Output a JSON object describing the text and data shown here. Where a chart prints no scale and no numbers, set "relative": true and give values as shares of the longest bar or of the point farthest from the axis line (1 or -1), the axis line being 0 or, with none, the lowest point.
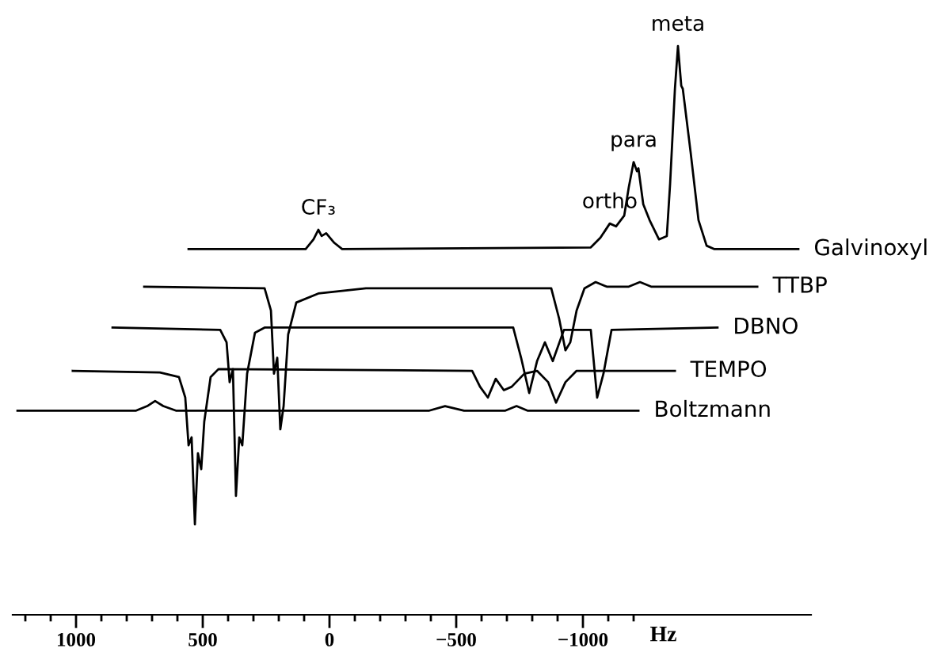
{
  "chart_data": {
    "type": "line",
    "relative": true,
    "xlabel": "Hz",
    "tick_labels": "x",
    "line_style": "solid",
    "xlim": [
      1250,
      -1900
    ],
    "xticks": [
      1000,
      500,
      0,
      {
        "value": -500,
        "label": "−500"
      },
      {
        "value": -1000,
        "label": "−1000"
      }
    ],
    "series": [
      {
        "name": "Galvinoxyl",
        "color": "#000000",
        "x": [
          556,
          94,
          63,
          44,
          31,
          13,
          -19,
          -50,
          -1031,
          -1069,
          -1106,
          -1131,
          -1163,
          -1181,
          -1200,
          -1213,
          -1219,
          -1238,
          -1263,
          -1300,
          -1331,
          -1344,
          -1363,
          -1375,
          -1388,
          -1394,
          -1425,
          -1456,
          -1488,
          -1519,
          -1850
        ],
        "values": [
          0.643,
          0.643,
          0.66,
          0.677,
          0.666,
          0.671,
          0.654,
          0.643,
          0.646,
          0.663,
          0.688,
          0.683,
          0.702,
          0.752,
          0.796,
          0.78,
          0.785,
          0.722,
          0.694,
          0.66,
          0.666,
          0.758,
          0.925,
          1,
          0.93,
          0.925,
          0.813,
          0.694,
          0.649,
          0.643,
          0.643
        ]
      },
      {
        "name": "TTBP",
        "color": "#000000",
        "x": [
          731,
          256,
          231,
          219,
          206,
          194,
          181,
          163,
          131,
          44,
          -144,
          -875,
          -906,
          -931,
          -950,
          -975,
          -1006,
          -1050,
          -1094,
          -1181,
          -1225,
          -1269,
          -1688
        ],
        "values": [
          0.577,
          0.574,
          0.535,
          0.424,
          0.452,
          0.326,
          0.367,
          0.493,
          0.549,
          0.565,
          0.574,
          0.574,
          0.521,
          0.465,
          0.479,
          0.535,
          0.574,
          0.585,
          0.577,
          0.577,
          0.585,
          0.577,
          0.577
        ]
      },
      {
        "name": "DBNO",
        "color": "#000000",
        "x": [
          856,
          431,
          406,
          394,
          381,
          369,
          356,
          344,
          325,
          294,
          256,
          -725,
          -756,
          -788,
          -819,
          -850,
          -881,
          -925,
          -1031,
          -1056,
          -1081,
          -1113,
          -1531
        ],
        "values": [
          0.505,
          0.501,
          0.479,
          0.409,
          0.432,
          0.209,
          0.312,
          0.298,
          0.424,
          0.496,
          0.505,
          0.505,
          0.452,
          0.39,
          0.446,
          0.479,
          0.446,
          0.501,
          0.501,
          0.382,
          0.424,
          0.501,
          0.505
        ]
      },
      {
        "name": "TEMPO",
        "color": "#000000",
        "x": [
          1013,
          669,
          594,
          569,
          556,
          544,
          531,
          519,
          506,
          494,
          469,
          438,
          -563,
          -594,
          -625,
          -656,
          -688,
          -719,
          -769,
          -819,
          -863,
          -894,
          -931,
          -975,
          -1363
        ],
        "values": [
          0.429,
          0.426,
          0.418,
          0.382,
          0.298,
          0.312,
          0.159,
          0.284,
          0.256,
          0.34,
          0.418,
          0.432,
          0.429,
          0.401,
          0.382,
          0.415,
          0.395,
          0.401,
          0.424,
          0.429,
          0.409,
          0.373,
          0.409,
          0.429,
          0.429
        ]
      },
      {
        "name": "Boltzmann",
        "color": "#000000",
        "x": [
          1231,
          763,
          719,
          688,
          656,
          606,
          -394,
          -456,
          -531,
          -694,
          -738,
          -781,
          -1219
        ],
        "values": [
          0.359,
          0.359,
          0.367,
          0.376,
          0.367,
          0.359,
          0.359,
          0.367,
          0.359,
          0.359,
          0.367,
          0.359,
          0.359
        ]
      }
    ],
    "annotations": [
      {
        "text": "CF₃",
        "x": 44,
        "y": 0.677
      },
      {
        "text": "ortho",
        "x": -1106,
        "y": 0.688
      },
      {
        "text": "para",
        "x": -1200,
        "y": 0.796
      },
      {
        "text": "meta",
        "x": -1375,
        "y": 1
      }
    ]
  }
}
